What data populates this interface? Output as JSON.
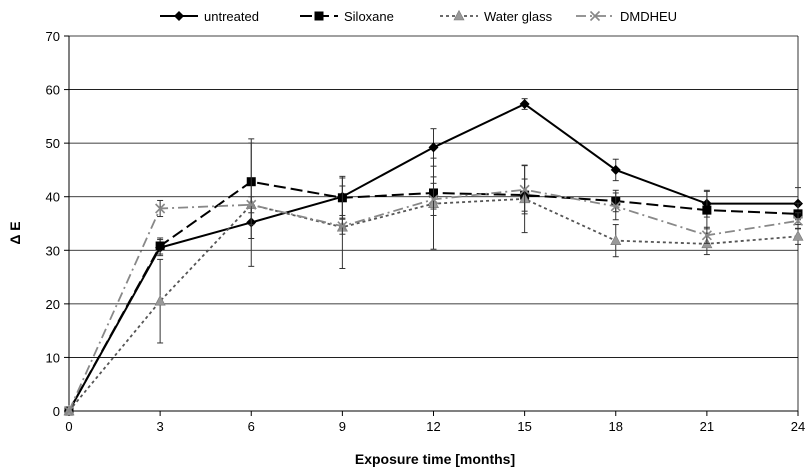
{
  "chart_data": {
    "type": "line",
    "title": "",
    "xlabel": "Exposure time [months]",
    "ylabel": "Δ E",
    "xlim": [
      0,
      24
    ],
    "ylim": [
      0,
      70
    ],
    "x_ticks": [
      "0",
      "3",
      "6",
      "9",
      "12",
      "15",
      "18",
      "21",
      "24"
    ],
    "y_ticks": [
      "0",
      "10",
      "20",
      "30",
      "40",
      "50",
      "60",
      "70"
    ],
    "grid": "horizontal",
    "legend_position": "top",
    "series": [
      {
        "name": "untreated",
        "color": "#000000",
        "dash": "solid",
        "marker": "diamond",
        "x": [
          0,
          3,
          6,
          9,
          12,
          15,
          18,
          21,
          24
        ],
        "y": [
          0,
          30.5,
          35.2,
          40,
          49.2,
          57.3,
          45,
          38.7,
          38.7
        ],
        "err": [
          0,
          1.5,
          3.0,
          3.5,
          3.5,
          1.0,
          2.0,
          2.5,
          3.0
        ]
      },
      {
        "name": "Siloxane",
        "color": "#000000",
        "dash": "long-dash",
        "marker": "square",
        "x": [
          0,
          3,
          6,
          9,
          12,
          15,
          18,
          21,
          24
        ],
        "y": [
          0,
          30.8,
          42.8,
          39.8,
          40.7,
          40.3,
          39.2,
          37.5,
          36.8
        ],
        "err": [
          0,
          1.5,
          8.0,
          4.0,
          3.0,
          3.0,
          2.0,
          3.5,
          2.0
        ]
      },
      {
        "name": "Water glass",
        "color": "#555555",
        "dash": "dotted",
        "marker": "triangle",
        "x": [
          0,
          3,
          6,
          9,
          12,
          15,
          18,
          21,
          24
        ],
        "y": [
          0,
          20.5,
          38.5,
          34.3,
          38.7,
          39.6,
          31.8,
          31.2,
          32.6
        ],
        "err": [
          0,
          7.8,
          11.5,
          7.7,
          8.5,
          6.3,
          3.0,
          2.0,
          1.5
        ]
      },
      {
        "name": "DMDHEU",
        "color": "#888888",
        "dash": "dash-dot",
        "marker": "x",
        "x": [
          0,
          3,
          6,
          9,
          12,
          15,
          18,
          21,
          24
        ],
        "y": [
          0,
          37.8,
          38.5,
          34.5,
          39.5,
          41.3,
          38.2,
          32.8,
          35.5
        ],
        "err": [
          0,
          1.5,
          1.5,
          1.5,
          3.0,
          4.5,
          2.5,
          1.5,
          1.5
        ]
      }
    ]
  }
}
